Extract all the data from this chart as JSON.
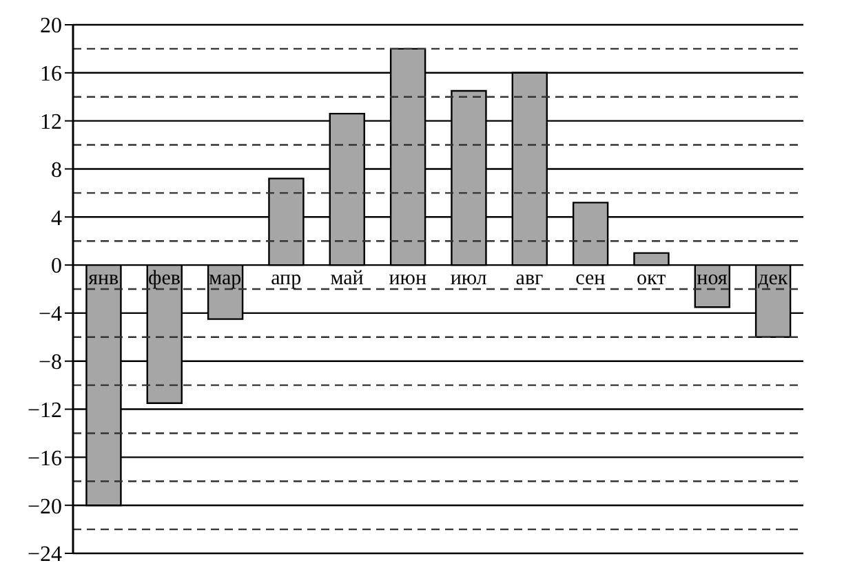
{
  "chart_data": {
    "type": "bar",
    "categories": [
      "янв",
      "фев",
      "мар",
      "апр",
      "май",
      "июн",
      "июл",
      "авг",
      "сен",
      "окт",
      "ноя",
      "дек"
    ],
    "values": [
      -20,
      -11.5,
      -4.5,
      7.2,
      12.6,
      18,
      14.5,
      16,
      5.2,
      1,
      -3.5,
      -6
    ],
    "color": "#a6a6a6",
    "ylim": [
      -24,
      20
    ],
    "yticks": [
      -24,
      -20,
      -16,
      -12,
      -8,
      -4,
      0,
      4,
      8,
      12,
      16,
      20
    ],
    "grid": "y",
    "ref_lines": [
      {
        "axis": "y",
        "value": -22,
        "line_style": "dashed"
      },
      {
        "axis": "y",
        "value": -18,
        "line_style": "dashed"
      },
      {
        "axis": "y",
        "value": -14,
        "line_style": "dashed"
      },
      {
        "axis": "y",
        "value": -10,
        "line_style": "dashed"
      },
      {
        "axis": "y",
        "value": -6,
        "line_style": "dashed"
      },
      {
        "axis": "y",
        "value": -2,
        "line_style": "dashed"
      },
      {
        "axis": "y",
        "value": 2,
        "line_style": "dashed"
      },
      {
        "axis": "y",
        "value": 6,
        "line_style": "dashed"
      },
      {
        "axis": "y",
        "value": 10,
        "line_style": "dashed"
      },
      {
        "axis": "y",
        "value": 14,
        "line_style": "dashed"
      },
      {
        "axis": "y",
        "value": 18,
        "line_style": "dashed"
      }
    ]
  }
}
